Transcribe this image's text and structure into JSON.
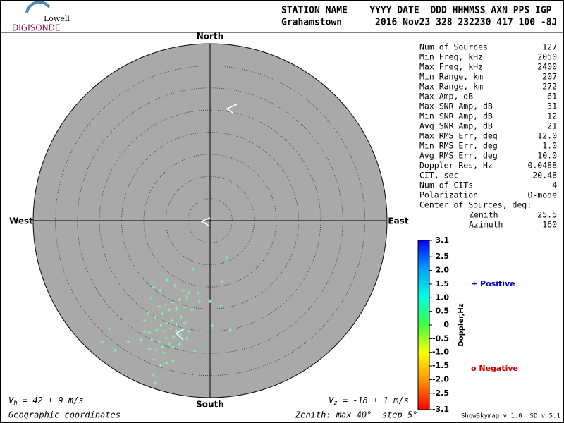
{
  "logo": {
    "top": "Lowell",
    "bottom": "DIGISONDE"
  },
  "header": {
    "line1": "STATION NAME    YYYY DATE  DDD HHMMSS AXN PPS IGP",
    "line2": "Grahamstown      2016 Nov23 328 232230 417 100 -8J"
  },
  "stats": [
    [
      "Num of Sources",
      "127"
    ],
    [
      "Min Freq, kHz",
      "2050"
    ],
    [
      "Max Freq, kHz",
      "2400"
    ],
    [
      "Min Range, km",
      "207"
    ],
    [
      "Max Range, km",
      "272"
    ],
    [
      "Max Amp, dB",
      "61"
    ],
    [
      "Max SNR Amp, dB",
      "31"
    ],
    [
      "Min SNR Amp, dB",
      "12"
    ],
    [
      "Avg SNR Amp, dB",
      "21"
    ],
    [
      "Max RMS Err, deg",
      "12.0"
    ],
    [
      "Min RMS Err, deg",
      "1.0"
    ],
    [
      "Avg RMS Err, deg",
      "10.0"
    ],
    [
      "Doppler Res, Hz",
      "0.0488"
    ],
    [
      "CIT, sec",
      "20.48"
    ],
    [
      "Num of CITs",
      "4"
    ],
    [
      "Polarization",
      "O-mode"
    ]
  ],
  "center": {
    "title": "Center of Sources, deg:",
    "rows": [
      [
        "Zenith",
        "25.5"
      ],
      [
        "Azimuth",
        "160"
      ]
    ]
  },
  "legend": {
    "positive": "+ Positive",
    "negative": "o Negative"
  },
  "bottom": {
    "vh": {
      "symbol": "V",
      "sub": "h",
      "text": " = 42 ± 9 m/s"
    },
    "vz": {
      "symbol": "V",
      "sub": "z",
      "text": " = -18 ± 1 m/s"
    },
    "coords": "Geographic coordinates",
    "zenith": "Zenith: max 40°  step 5°",
    "version": "ShowSkymap v 1.0  SD v 5.1"
  },
  "chart_data": {
    "type": "scatter",
    "directions": {
      "north": "North",
      "south": "South",
      "east": "East",
      "west": "West"
    },
    "xlim": [
      -40,
      40
    ],
    "ylim": [
      -40,
      40
    ],
    "rings": [
      5,
      10,
      15,
      20,
      25,
      30,
      35,
      40
    ],
    "series": [
      {
        "color": "#7dffb4",
        "x": [
          3.8,
          -3.8,
          2.7,
          0.0,
          -2.4,
          2.4,
          4.5,
          0.5,
          -1.8,
          -12.7,
          -9.7,
          -8.0,
          -11.3,
          -13.2,
          -6.1,
          -4.8,
          -2.7,
          -5.3,
          -6.9,
          -8.4,
          -10.0,
          -11.6,
          -14.0,
          -12.4,
          -10.8,
          -9.2,
          -7.6,
          -5.7,
          -4.1,
          -8.6,
          -9.9,
          -11.2,
          -12.1,
          -13.7,
          -10.5,
          -8.9,
          -7.6,
          -6.7,
          -8.3,
          -9.9,
          -11.5,
          -13.2,
          -9.2,
          -10.8,
          -12.1,
          -13.7,
          -8.4,
          -6.9,
          -5.3,
          -22.8,
          -24.4,
          -18.5,
          -21.5,
          -15.6,
          -14.8,
          -12.7,
          -11.2,
          -9.9,
          -8.4,
          -12.9,
          -12.4,
          -4.8,
          -3.5,
          -10.5,
          -7.6,
          -6.5,
          -14.8,
          -5.7
        ],
        "y": [
          -8.3,
          -11.0,
          -13.7,
          -18.2,
          -18.3,
          -19.1,
          -24.7,
          -23.7,
          -31.5,
          -15.0,
          -13.4,
          -14.7,
          -15.8,
          -17.5,
          -15.8,
          -16.3,
          -16.3,
          -17.4,
          -17.8,
          -18.6,
          -19.0,
          -19.4,
          -21.0,
          -21.8,
          -21.0,
          -20.2,
          -19.9,
          -19.6,
          -20.2,
          -22.6,
          -23.1,
          -23.7,
          -24.7,
          -25.3,
          -25.0,
          -24.4,
          -25.0,
          -25.8,
          -26.3,
          -26.6,
          -27.4,
          -26.9,
          -27.9,
          -28.5,
          -29.2,
          -29.0,
          -28.5,
          -27.9,
          -26.6,
          -24.4,
          -27.4,
          -27.4,
          -29.3,
          -26.9,
          -25.0,
          -31.4,
          -32.7,
          -32.2,
          -31.7,
          -34.9,
          -36.7,
          -25.0,
          -29.5,
          -29.8,
          -23.4,
          -21.8,
          -22.6,
          -23.1
        ]
      }
    ],
    "colorbar": {
      "label": "Doppler,Hz",
      "lim": [
        -3.1,
        3.1
      ],
      "colors": [
        "#0000ff",
        "#00a0ff",
        "#00ffe0",
        "#40ff40",
        "#ffff00",
        "#ff9000",
        "#ff0000"
      ],
      "ticks": [
        3.1,
        2.5,
        {
          "value": 2,
          "label": "2.0"
        },
        1.5,
        {
          "value": 1,
          "label": "1.0"
        },
        0.5,
        0,
        -0.5,
        {
          "value": -1,
          "label": "-1.0"
        },
        -1.5,
        {
          "value": -2,
          "label": "-2.0"
        },
        -2.5,
        -3.1
      ]
    }
  }
}
